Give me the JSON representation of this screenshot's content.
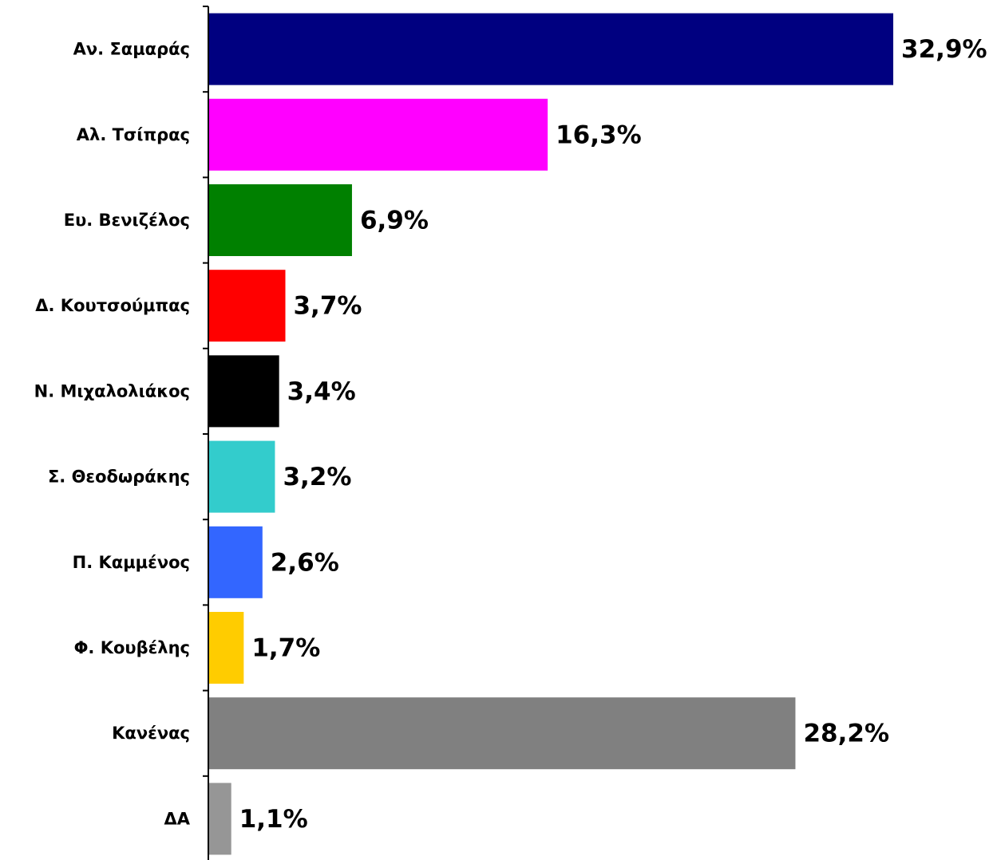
{
  "chart_data": {
    "type": "bar",
    "orientation": "horizontal",
    "categories": [
      "Αν. Σαμαράς",
      "Αλ. Τσίπρας",
      "Ευ. Βενιζέλος",
      "Δ. Κουτσούμπας",
      "Ν. Μιχαλολιάκος",
      "Σ. Θεοδωράκης",
      "Π. Καμμένος",
      "Φ. Κουβέλης",
      "Κανένας",
      "ΔΑ"
    ],
    "values": [
      32.9,
      16.3,
      6.9,
      3.7,
      3.4,
      3.2,
      2.6,
      1.7,
      28.2,
      1.1
    ],
    "value_labels": [
      "32,9%",
      "16,3%",
      "6,9%",
      "3,7%",
      "3,4%",
      "3,2%",
      "2,6%",
      "1,7%",
      "28,2%",
      "1,1%"
    ],
    "colors": [
      "#000080",
      "#ff00ff",
      "#008000",
      "#ff0000",
      "#000000",
      "#33cccc",
      "#3366ff",
      "#ffcc00",
      "#808080",
      "#969696"
    ]
  }
}
